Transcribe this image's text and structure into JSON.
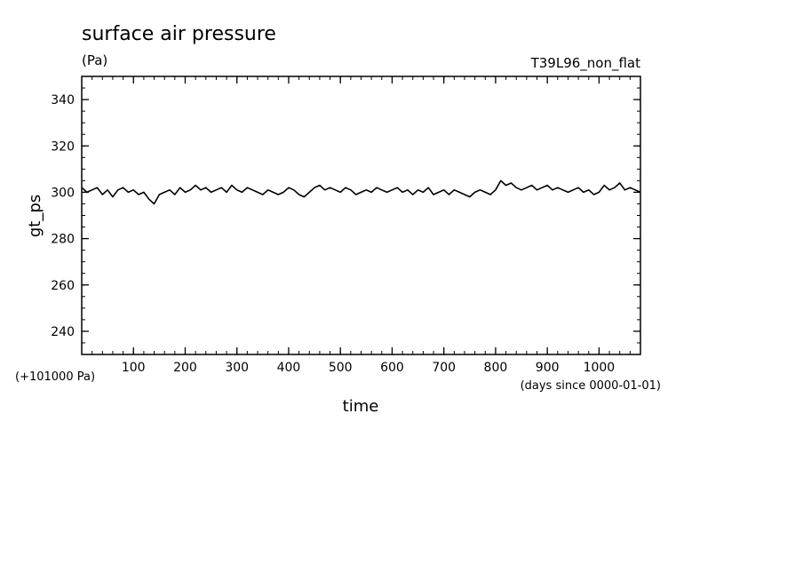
{
  "chart_data": {
    "type": "line",
    "title": "surface air pressure",
    "units": "(Pa)",
    "experiment": "T39L96_non_flat",
    "ylabel": "gt_ps",
    "xlabel": "time",
    "y_offset_label": "(+101000 Pa)",
    "x_units_label": "(days since 0000-01-01)",
    "xlim": [
      0,
      1080
    ],
    "ylim": [
      230,
      350
    ],
    "x_ticks": [
      100,
      200,
      300,
      400,
      500,
      600,
      700,
      800,
      900,
      1000
    ],
    "y_ticks": [
      240,
      260,
      280,
      300,
      320,
      340
    ],
    "grid": false,
    "series": [
      {
        "x": [
          0,
          10,
          20,
          30,
          40,
          50,
          60,
          70,
          80,
          90,
          100,
          110,
          120,
          130,
          140,
          150,
          160,
          170,
          180,
          190,
          200,
          210,
          220,
          230,
          240,
          250,
          260,
          270,
          280,
          290,
          300,
          310,
          320,
          330,
          340,
          350,
          360,
          370,
          380,
          390,
          400,
          410,
          420,
          430,
          440,
          450,
          460,
          470,
          480,
          490,
          500,
          510,
          520,
          530,
          540,
          550,
          560,
          570,
          580,
          590,
          600,
          610,
          620,
          630,
          640,
          650,
          660,
          670,
          680,
          690,
          700,
          710,
          720,
          730,
          740,
          750,
          760,
          770,
          780,
          790,
          800,
          810,
          820,
          830,
          840,
          850,
          860,
          870,
          880,
          890,
          900,
          910,
          920,
          930,
          940,
          950,
          960,
          970,
          980,
          990,
          1000,
          1010,
          1020,
          1030,
          1040,
          1050,
          1060,
          1070,
          1080
        ],
        "values": [
          302,
          300,
          301,
          302,
          299,
          301,
          298,
          301,
          302,
          300,
          301,
          299,
          300,
          297,
          295,
          299,
          300,
          301,
          299,
          302,
          300,
          301,
          303,
          301,
          302,
          300,
          301,
          302,
          300,
          303,
          301,
          300,
          302,
          301,
          300,
          299,
          301,
          300,
          299,
          300,
          302,
          301,
          299,
          298,
          300,
          302,
          303,
          301,
          302,
          301,
          300,
          302,
          301,
          299,
          300,
          301,
          300,
          302,
          301,
          300,
          301,
          302,
          300,
          301,
          299,
          301,
          300,
          302,
          299,
          300,
          301,
          299,
          301,
          300,
          299,
          298,
          300,
          301,
          300,
          299,
          301,
          305,
          303,
          304,
          302,
          301,
          302,
          303,
          301,
          302,
          303,
          301,
          302,
          301,
          300,
          301,
          302,
          300,
          301,
          299,
          300,
          303,
          301,
          302,
          304,
          301,
          302,
          301,
          300
        ]
      }
    ]
  }
}
